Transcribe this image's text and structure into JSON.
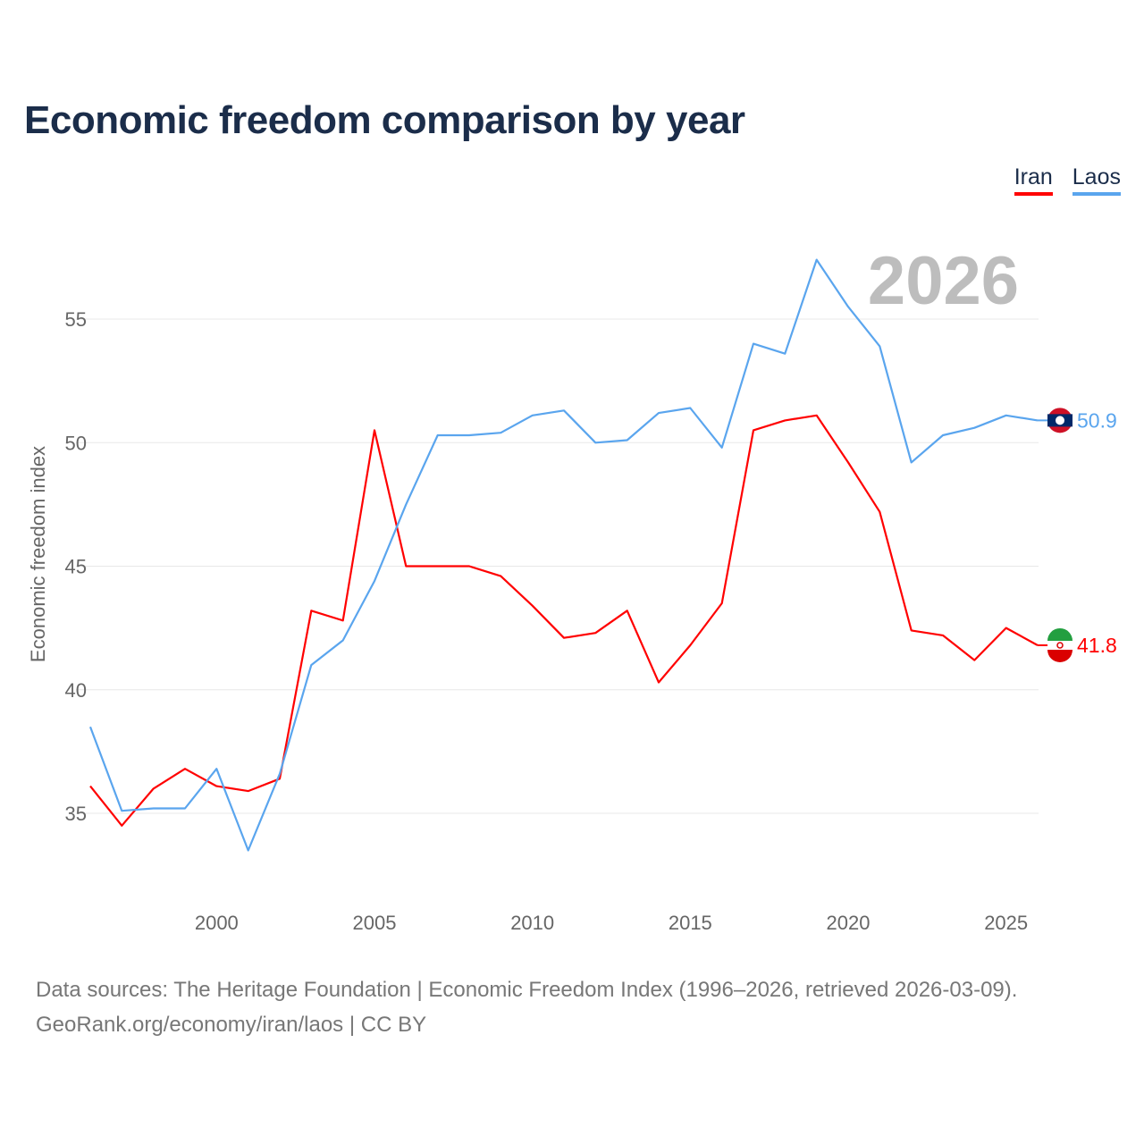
{
  "chart_data": {
    "type": "line",
    "title": "Economic freedom comparison by year",
    "watermark_year": "2026",
    "xlabel": "",
    "ylabel": "Economic freedom index",
    "xlim": [
      1996,
      2026
    ],
    "ylim": [
      31.5,
      59
    ],
    "x_ticks": [
      2000,
      2005,
      2010,
      2015,
      2020,
      2025
    ],
    "y_ticks": [
      35,
      40,
      45,
      50,
      55
    ],
    "grid": true,
    "legend_position": "top-right",
    "x": [
      1996,
      1997,
      1998,
      1999,
      2000,
      2001,
      2002,
      2003,
      2004,
      2005,
      2006,
      2007,
      2008,
      2009,
      2010,
      2011,
      2012,
      2013,
      2014,
      2015,
      2016,
      2017,
      2018,
      2019,
      2020,
      2021,
      2022,
      2023,
      2024,
      2025,
      2026
    ],
    "series": [
      {
        "name": "Iran",
        "color": "#ff0000",
        "end_label": "41.8",
        "values": [
          36.1,
          34.5,
          36.0,
          36.8,
          36.1,
          35.9,
          36.4,
          43.2,
          42.8,
          50.5,
          45.0,
          45.0,
          45.0,
          44.6,
          43.4,
          42.1,
          42.3,
          43.2,
          40.3,
          41.8,
          43.5,
          50.5,
          50.9,
          51.1,
          49.2,
          47.2,
          42.4,
          42.2,
          41.2,
          42.5,
          41.8
        ]
      },
      {
        "name": "Laos",
        "color": "#5aa5ee",
        "end_label": "50.9",
        "values": [
          38.5,
          35.1,
          35.2,
          35.2,
          36.8,
          33.5,
          36.6,
          41.0,
          42.0,
          44.4,
          47.5,
          50.3,
          50.3,
          50.4,
          51.1,
          51.3,
          50.0,
          50.1,
          51.2,
          51.4,
          49.8,
          54.0,
          53.6,
          57.4,
          55.5,
          53.9,
          49.2,
          50.3,
          50.6,
          51.1,
          50.9
        ]
      }
    ]
  },
  "source": {
    "line1": "Data sources: The Heritage Foundation | Economic Freedom Index (1996–2026, retrieved 2026-03-09).",
    "line2": "GeoRank.org/economy/iran/laos | CC BY"
  }
}
